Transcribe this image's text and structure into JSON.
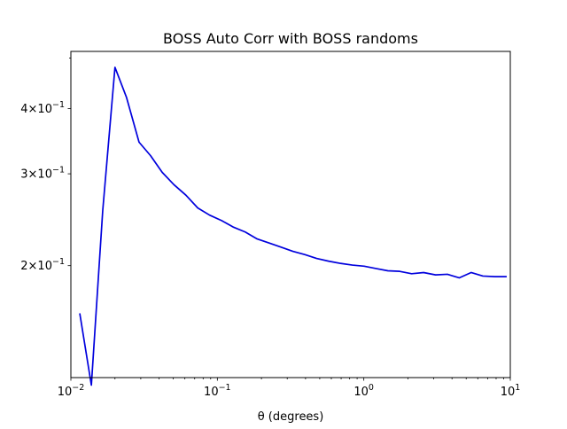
{
  "chart_data": {
    "type": "line",
    "title": "BOSS Auto Corr with BOSS randoms",
    "xlabel": "θ (degrees)",
    "ylabel": "",
    "xscale": "log",
    "yscale": "log",
    "xlim": [
      0.01,
      10
    ],
    "ylim": [
      0.122,
      0.515
    ],
    "grid": false,
    "x_ticks": [
      {
        "value": 0.01,
        "base": "10",
        "exp": "−2"
      },
      {
        "value": 0.1,
        "base": "10",
        "exp": "−1"
      },
      {
        "value": 1,
        "base": "10",
        "exp": "0"
      },
      {
        "value": 10,
        "base": "10",
        "exp": "1"
      }
    ],
    "y_ticks": [
      {
        "value": 0.2,
        "mantissa": "2",
        "base": "10",
        "exp": "−1"
      },
      {
        "value": 0.3,
        "mantissa": "3",
        "base": "10",
        "exp": "−1"
      },
      {
        "value": 0.4,
        "mantissa": "4",
        "base": "10",
        "exp": "−1"
      }
    ],
    "series": [
      {
        "color": "#0000dd",
        "x": [
          0.0115,
          0.0138,
          0.0165,
          0.02,
          0.024,
          0.0292,
          0.035,
          0.042,
          0.0505,
          0.061,
          0.0735,
          0.0885,
          0.107,
          0.129,
          0.155,
          0.187,
          0.226,
          0.272,
          0.328,
          0.395,
          0.476,
          0.574,
          0.692,
          0.835,
          1.005,
          1.21,
          1.46,
          1.76,
          2.12,
          2.56,
          3.09,
          3.72,
          4.48,
          5.4,
          6.5,
          7.85,
          9.45
        ],
        "y": [
          0.162,
          0.118,
          0.255,
          0.48,
          0.42,
          0.345,
          0.325,
          0.302,
          0.286,
          0.273,
          0.258,
          0.25,
          0.244,
          0.237,
          0.232,
          0.225,
          0.221,
          0.217,
          0.213,
          0.21,
          0.2065,
          0.204,
          0.202,
          0.2005,
          0.1995,
          0.1975,
          0.1955,
          0.195,
          0.193,
          0.194,
          0.192,
          0.1925,
          0.1895,
          0.194,
          0.191,
          0.1905,
          0.1905
        ]
      }
    ]
  }
}
